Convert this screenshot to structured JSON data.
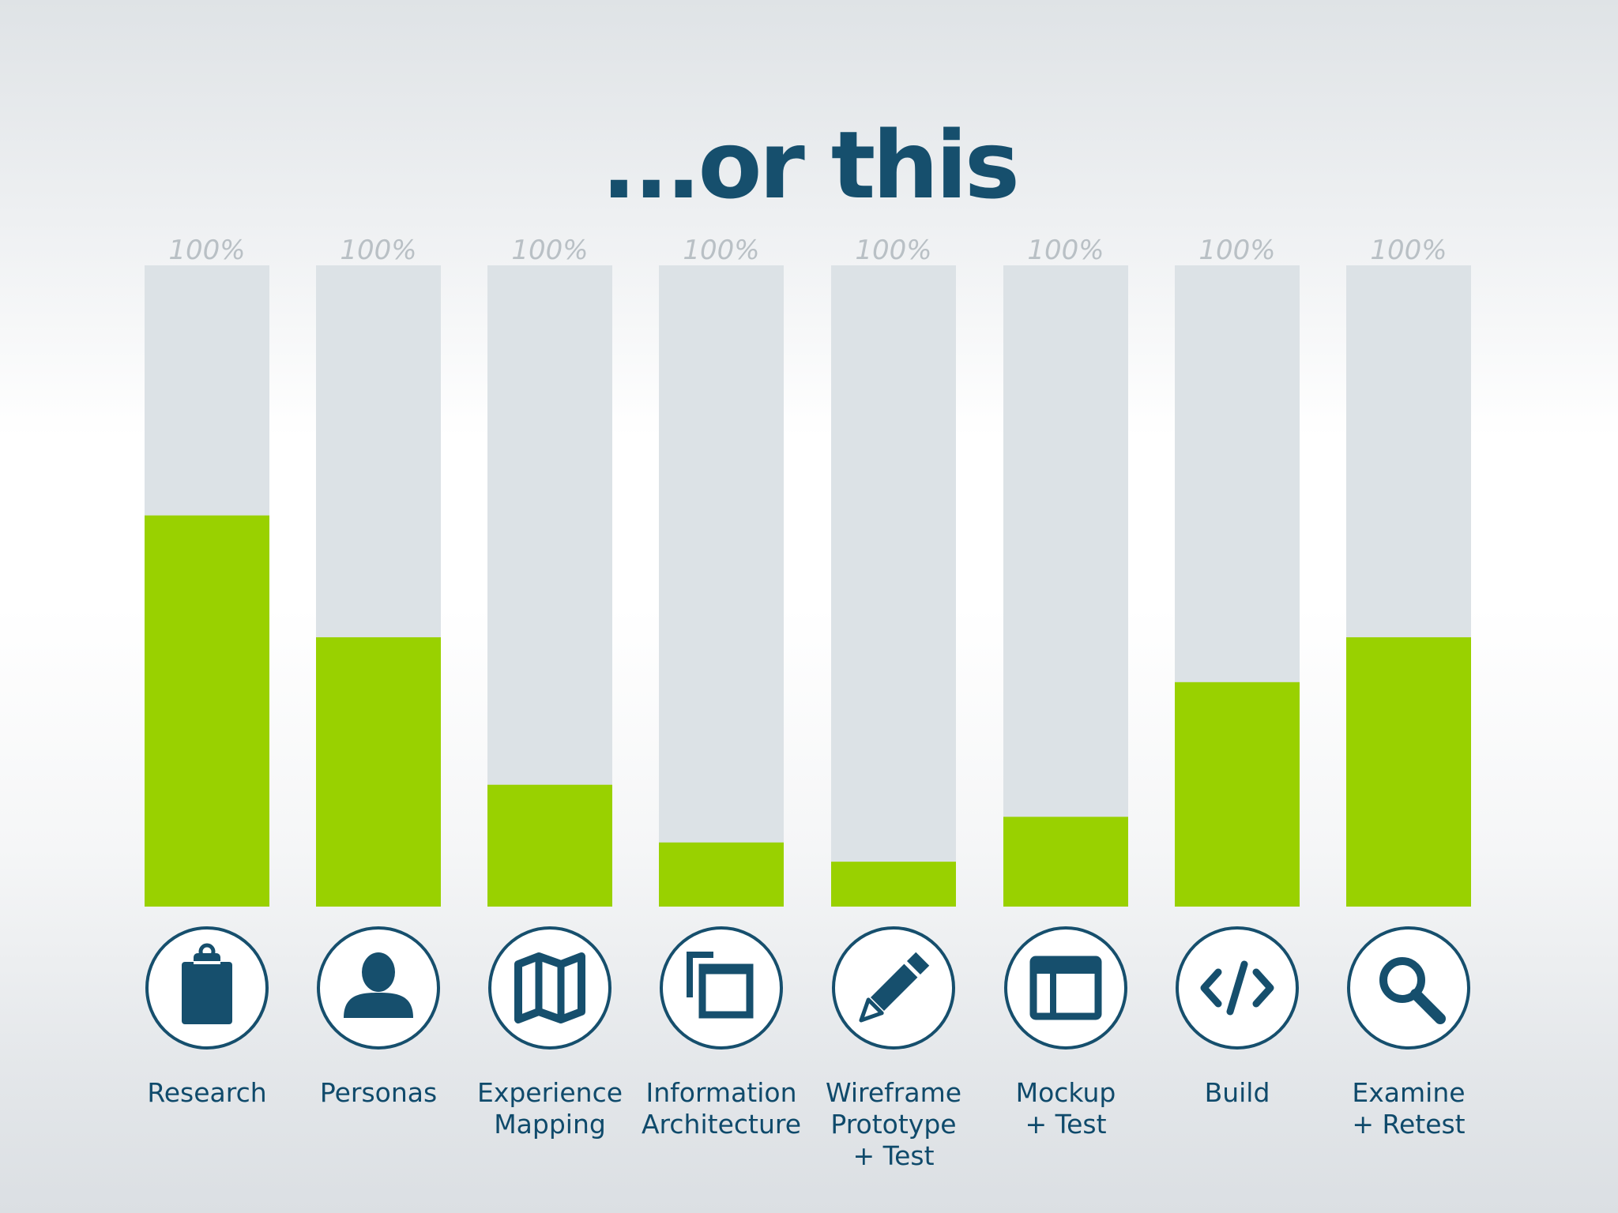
{
  "title": "...or this",
  "colors": {
    "fill": "#99d100",
    "track": "#dce2e6",
    "accent": "#164f6d",
    "label": "#0f4a6b",
    "pct": "#b9c0c5"
  },
  "chart_data": {
    "type": "bar",
    "title": "...or this",
    "xlabel": "",
    "ylabel": "",
    "ylim": [
      0,
      100
    ],
    "grid": false,
    "legend": "none",
    "max_label": "100%",
    "categories": [
      "Research",
      "Personas",
      "Experience Mapping",
      "Information Architecture",
      "Wireframe Prototype + Test",
      "Mockup + Test",
      "Build",
      "Examine + Retest"
    ],
    "values": [
      61,
      42,
      19,
      10,
      7,
      14,
      35,
      42
    ],
    "items": [
      {
        "label_lines": [
          "Research"
        ],
        "icon": "clipboard-icon",
        "value": 61,
        "max_label": "100%"
      },
      {
        "label_lines": [
          "Personas"
        ],
        "icon": "person-icon",
        "value": 42,
        "max_label": "100%"
      },
      {
        "label_lines": [
          "Experience",
          "Mapping"
        ],
        "icon": "map-icon",
        "value": 19,
        "max_label": "100%"
      },
      {
        "label_lines": [
          "Information",
          "Architecture"
        ],
        "icon": "copy-icon",
        "value": 10,
        "max_label": "100%"
      },
      {
        "label_lines": [
          "Wireframe",
          "Prototype",
          "+ Test"
        ],
        "icon": "pencil-icon",
        "value": 7,
        "max_label": "100%"
      },
      {
        "label_lines": [
          "Mockup",
          "+ Test"
        ],
        "icon": "layout-icon",
        "value": 14,
        "max_label": "100%"
      },
      {
        "label_lines": [
          "Build"
        ],
        "icon": "code-icon",
        "value": 35,
        "max_label": "100%"
      },
      {
        "label_lines": [
          "Examine",
          "+ Retest"
        ],
        "icon": "search-icon",
        "value": 42,
        "max_label": "100%"
      }
    ]
  }
}
